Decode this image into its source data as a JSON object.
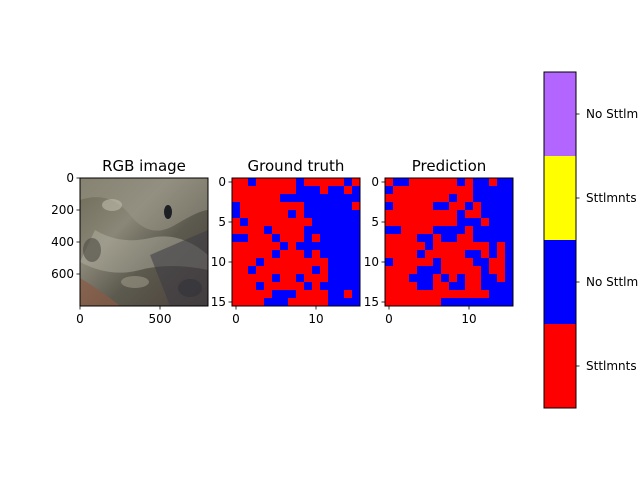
{
  "colors": {
    "sttlmnts": "#ff0000",
    "no_sttlmnts": "#0000ff",
    "sttlmnts_alt": "#ffff00",
    "no_sttlmnts_alt": "#b266ff"
  },
  "chart_data": [
    {
      "type": "image",
      "title": "RGB image",
      "xlim": [
        0,
        800
      ],
      "ylim": [
        800,
        0
      ],
      "xticks": [
        "0",
        "500"
      ],
      "yticks": [
        "0",
        "200",
        "400",
        "600"
      ]
    },
    {
      "type": "heatmap",
      "title": "Ground truth",
      "xlim": [
        -0.5,
        15.5
      ],
      "ylim": [
        15.5,
        -0.5
      ],
      "xticks": [
        "0",
        "10"
      ],
      "yticks": [
        "0",
        "5",
        "10",
        "15"
      ],
      "value_map": {
        "0": "Sttlmnts",
        "1": "No Sttlmnts"
      },
      "grid": [
        "0010000010000010",
        "0000000011101101",
        "0000001111111111",
        "1000000001111110",
        "1000000101111111",
        "0100000000111111",
        "0000100001111111",
        "1100010001011111",
        "0000001011111111",
        "0000010001011111",
        "0001000000001111",
        "0010000000101111",
        "0000010010001111",
        "0001000001011111",
        "0000011100001101",
        "0000111000001111"
      ]
    },
    {
      "type": "heatmap",
      "title": "Prediction",
      "xlim": [
        -0.5,
        15.5
      ],
      "ylim": [
        15.5,
        -0.5
      ],
      "xticks": [
        "0",
        "10"
      ],
      "yticks": [
        "0",
        "5",
        "10",
        "15"
      ],
      "value_map": {
        "0": "Sttlmnts",
        "1": "No Sttlmnts"
      },
      "grid": [
        "0110000001011011",
        "1000000000011111",
        "0000000010011111",
        "1000001100101111",
        "0000000001001111",
        "0000000001110111",
        "1100001111011111",
        "0000110110011111",
        "0000010000000101",
        "0000100000110101",
        "1000001000011001",
        "0000111000001001",
        "0001110101001101",
        "0000110011001111",
        "0000000000000111",
        "0000000111111111"
      ]
    },
    {
      "type": "colorbar",
      "labels": [
        "Sttlmnts",
        "No Sttlmnts",
        "Sttlmnts",
        "No Sttlmnts"
      ],
      "display_labels": [
        "Sttlmnts",
        "No Sttlm",
        "Sttlmnts",
        "No Sttlm"
      ]
    }
  ]
}
